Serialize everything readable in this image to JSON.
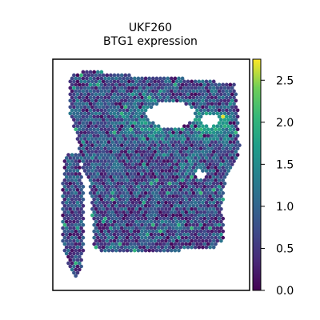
{
  "chart_data": {
    "type": "scatter",
    "title": "UKF260",
    "subtitle": "BTG1 expression",
    "xlabel": "",
    "ylabel": "",
    "colormap": "viridis",
    "color_range": [
      0.0,
      2.75
    ],
    "colorbar_ticks": [
      "0.0",
      "0.5",
      "1.0",
      "1.5",
      "2.0",
      "2.5"
    ],
    "colorbar_tick_values": [
      0.0,
      0.5,
      1.0,
      1.5,
      2.0,
      2.5
    ],
    "grid": false,
    "axes_ticks_visible": false,
    "points_description": "Hexagonal grid of spatial spots colored by BTG1 expression; values mostly 0.3-1.3, higher (1.5-2.5) in the upper region around a gap."
  }
}
